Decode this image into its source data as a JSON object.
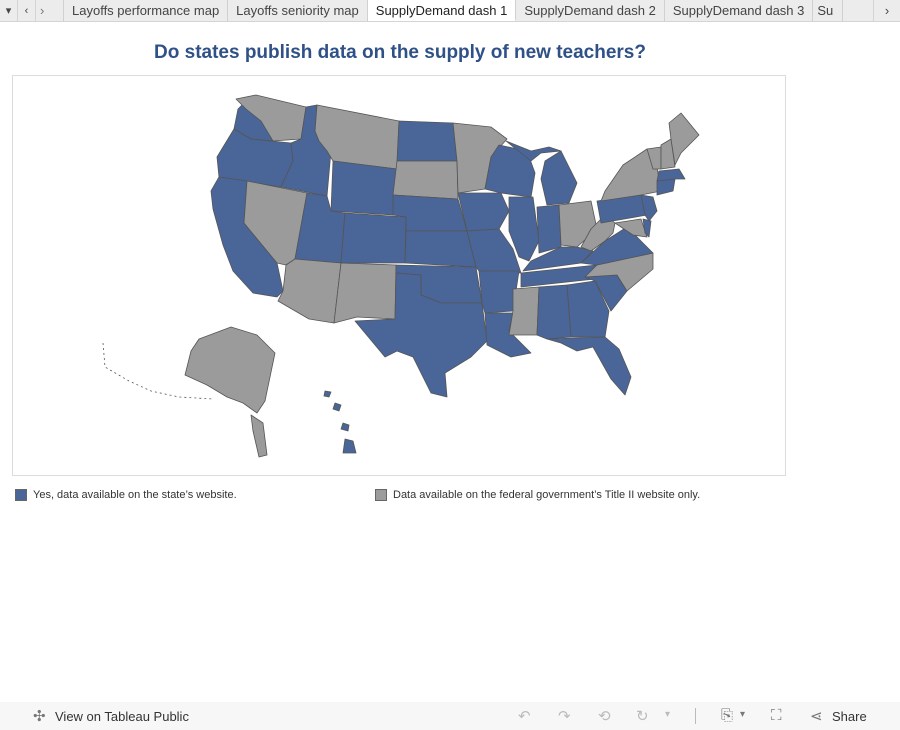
{
  "tabs": [
    {
      "label": "Layoffs performance map",
      "active": false
    },
    {
      "label": "Layoffs seniority map",
      "active": false
    },
    {
      "label": "SupplyDemand dash 1",
      "active": true
    },
    {
      "label": "SupplyDemand dash 2",
      "active": false
    },
    {
      "label": "SupplyDemand dash 3",
      "active": false
    },
    {
      "label": "Su",
      "active": false
    }
  ],
  "title": "Do states publish data on the supply of new teachers?",
  "legend": {
    "yes_label": "Yes, data available on the state’s website.",
    "no_label": "Data available on the federal government’s Title II website only."
  },
  "colors": {
    "yes": "#4a6598",
    "no": "#9b9b9b",
    "title": "#2f5187"
  },
  "map": {
    "states_yes": [
      "WA-W",
      "OR",
      "ID",
      "CA",
      "WY",
      "ND",
      "UT",
      "CO",
      "NE",
      "KS",
      "OK",
      "TX",
      "IA",
      "MO",
      "AR",
      "LA",
      "WI",
      "MI",
      "IL",
      "IN",
      "KY",
      "TN",
      "AL",
      "GA",
      "SC",
      "FL",
      "VA",
      "PA",
      "NJ",
      "DE",
      "CT",
      "MA",
      "HI"
    ],
    "states_no": [
      "WA-E",
      "MT",
      "NV",
      "AZ",
      "NM",
      "SD",
      "MN",
      "MS",
      "OH",
      "WV",
      "NC",
      "NY",
      "VT",
      "NH",
      "ME",
      "MD",
      "AK"
    ]
  },
  "footer": {
    "view_label": "View on Tableau Public",
    "share_label": "Share"
  }
}
